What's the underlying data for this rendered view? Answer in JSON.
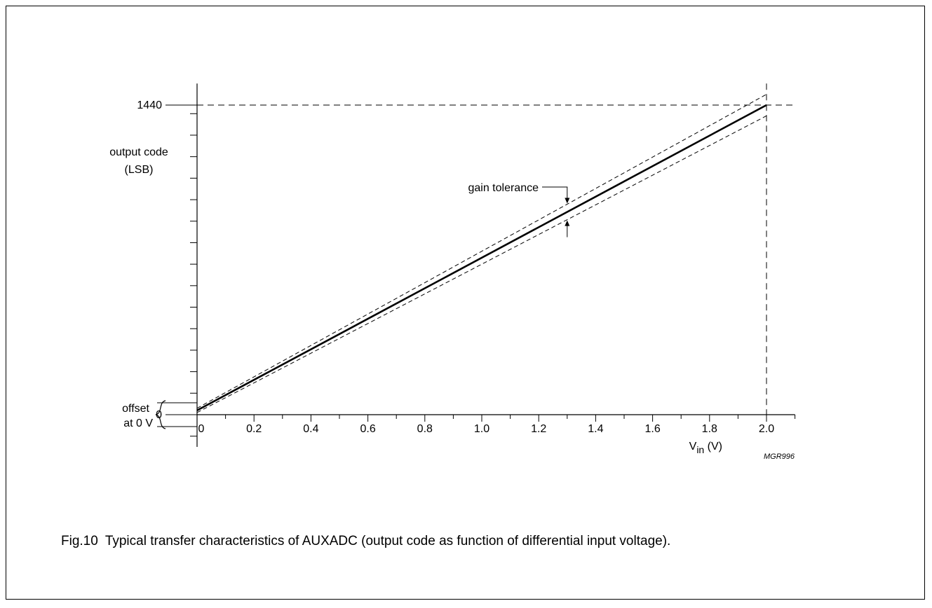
{
  "chart_data": {
    "type": "line",
    "xlabel_main": "V",
    "xlabel_sub": "in",
    "xlabel_unit": " (V)",
    "ylabel": [
      "output code",
      "(LSB)"
    ],
    "x_ticks": [
      "0",
      "0.2",
      "0.4",
      "0.6",
      "0.8",
      "1.0",
      "1.2",
      "1.4",
      "1.6",
      "1.8",
      "2.0"
    ],
    "y_tick_labels": [
      "0",
      "1440"
    ],
    "xlim": [
      0,
      2.1
    ],
    "ylim": [
      -150,
      1540
    ],
    "series": [
      {
        "style": "solid-thick",
        "x": [
          0,
          2.0
        ],
        "y": [
          20,
          1440
        ]
      },
      {
        "style": "dashed",
        "x": [
          0,
          2.0
        ],
        "y": [
          30,
          1490
        ]
      },
      {
        "style": "dashed",
        "x": [
          0,
          2.0
        ],
        "y": [
          10,
          1390
        ]
      }
    ],
    "reference_lines": [
      {
        "orientation": "horizontal",
        "value": 1440,
        "style": "dashed"
      },
      {
        "orientation": "vertical",
        "value": 2.0,
        "style": "dashed"
      }
    ],
    "annotations": {
      "gain_tolerance": {
        "text": "gain tolerance",
        "x": 1.3
      },
      "offset": {
        "lines": [
          "offset",
          "at 0 V"
        ]
      }
    },
    "figure_code": "MGR996"
  },
  "caption": {
    "number": "Fig.10",
    "text": "Typical transfer characteristics of AUXADC (output code as function of differential input voltage)."
  }
}
